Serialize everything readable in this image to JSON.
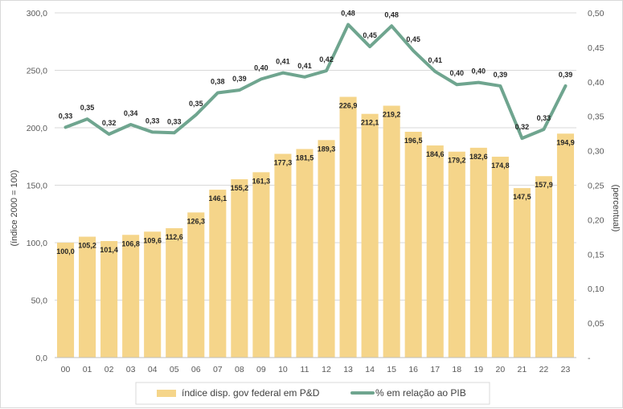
{
  "chart_data": {
    "type": "bar+line",
    "title": "",
    "categories": [
      "00",
      "01",
      "02",
      "03",
      "04",
      "05",
      "06",
      "07",
      "08",
      "09",
      "10",
      "11",
      "12",
      "13",
      "14",
      "15",
      "16",
      "17",
      "18",
      "19",
      "20",
      "21",
      "22",
      "23"
    ],
    "series": [
      {
        "name": "índice disp. gov federal em P&D",
        "type": "bar",
        "axis": "left",
        "color": "#F5D58A",
        "values": [
          100.0,
          105.2,
          101.4,
          106.8,
          109.6,
          112.6,
          126.3,
          146.1,
          155.2,
          161.3,
          177.3,
          181.5,
          189.3,
          226.9,
          212.1,
          219.2,
          196.5,
          184.6,
          179.2,
          182.6,
          174.8,
          147.5,
          157.9,
          194.9
        ],
        "labels": [
          "100,0",
          "105,2",
          "101,4",
          "106,8",
          "109,6",
          "112,6",
          "126,3",
          "146,1",
          "155,2",
          "161,3",
          "177,3",
          "181,5",
          "189,3",
          "226,9",
          "212,1",
          "219,2",
          "196,5",
          "184,6",
          "179,2",
          "182,6",
          "174,8",
          "147,5",
          "157,9",
          "194,9"
        ]
      },
      {
        "name": "% em relação ao PIB",
        "type": "line",
        "axis": "right",
        "color": "#6FA58F",
        "values": [
          0.334,
          0.346,
          0.324,
          0.338,
          0.327,
          0.326,
          0.352,
          0.384,
          0.388,
          0.404,
          0.413,
          0.407,
          0.416,
          0.483,
          0.451,
          0.481,
          0.445,
          0.415,
          0.396,
          0.399,
          0.394,
          0.318,
          0.331,
          0.394
        ],
        "labels": [
          "0,33",
          "0,35",
          "0,32",
          "0,34",
          "0,33",
          "0,33",
          "0,35",
          "0,38",
          "0,39",
          "0,40",
          "0,41",
          "0,41",
          "0,42",
          "0,48",
          "0,45",
          "0,48",
          "0,45",
          "0,41",
          "0,40",
          "0,40",
          "0,39",
          "0,32",
          "0,33",
          "0,39"
        ]
      }
    ],
    "y_left": {
      "label": "(índice 2000 = 100)",
      "lim": [
        0,
        300
      ],
      "ticks": [
        0,
        50,
        100,
        150,
        200,
        250,
        300
      ],
      "tick_labels": [
        "0,0",
        "50,0",
        "100,0",
        "150,0",
        "200,0",
        "250,0",
        "300,0"
      ]
    },
    "y_right": {
      "label": "(percentual)",
      "lim": [
        0,
        0.5
      ],
      "ticks": [
        0,
        0.05,
        0.1,
        0.15,
        0.2,
        0.25,
        0.3,
        0.35,
        0.4,
        0.45,
        0.5
      ],
      "tick_labels": [
        "-",
        "0,05",
        "0,10",
        "0,15",
        "0,20",
        "0,25",
        "0,30",
        "0,35",
        "0,40",
        "0,45",
        "0,50"
      ]
    },
    "grid": true,
    "legend": {
      "placement": "bottom",
      "items": [
        {
          "label": "índice disp. gov federal em P&D",
          "kind": "bar",
          "color": "#F5D58A"
        },
        {
          "label": "% em relação ao PIB",
          "kind": "line",
          "color": "#6FA58F"
        }
      ]
    }
  }
}
